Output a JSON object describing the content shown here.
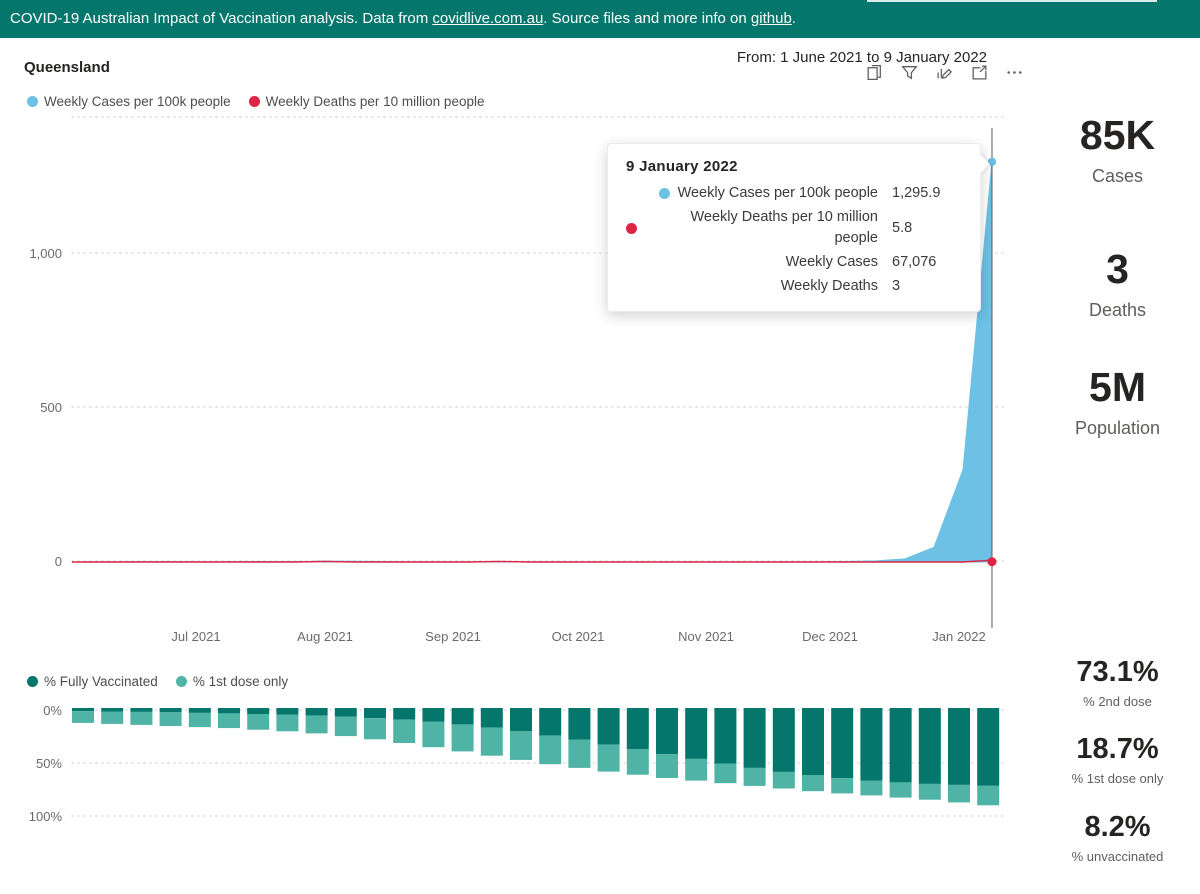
{
  "theme": {
    "teal": "#04766B",
    "light_teal": "#4FB3A5",
    "blue": "#6CC1E4",
    "red": "#DF2445",
    "text_dark": "#252423",
    "text_gray": "#605E5C",
    "grid": "#CFCECD"
  },
  "banner": {
    "text_before_link1": "COVID-19 Australian Impact of Vaccination analysis. Data from ",
    "link1": "covidlive.com.au",
    "text_between": ". Source files and more info on ",
    "link2": "github",
    "text_after": "."
  },
  "header": {
    "title": "Queensland",
    "date_range": "From: 1 June 2021 to 9 January 2022",
    "toolbar_icons": [
      "copy-visual",
      "filter",
      "personalize-visual",
      "focus-mode",
      "more-options"
    ]
  },
  "legend_top": {
    "items": [
      {
        "label": "Weekly Cases per 100k people",
        "color": "#6CC1E4"
      },
      {
        "label": "Weekly Deaths per 10 million people",
        "color": "#DF2445"
      }
    ]
  },
  "legend_bottom": {
    "items": [
      {
        "label": "% Fully Vaccinated",
        "color": "#04766B"
      },
      {
        "label": "% 1st dose only",
        "color": "#4FB3A5"
      }
    ]
  },
  "tooltip": {
    "title": "9 January 2022",
    "rows": [
      {
        "dot": "#6CC1E4",
        "label": "Weekly Cases per 100k people",
        "value": "1,295.9"
      },
      {
        "dot": "#DF2445",
        "label": "Weekly Deaths per 10 million people",
        "value": "5.8"
      },
      {
        "dot": null,
        "label": "Weekly Cases",
        "value": "67,076"
      },
      {
        "dot": null,
        "label": "Weekly Deaths",
        "value": "3"
      }
    ]
  },
  "kpis_top": [
    {
      "value": "85K",
      "label": "Cases"
    },
    {
      "value": "3",
      "label": "Deaths"
    },
    {
      "value": "5M",
      "label": "Population"
    }
  ],
  "kpis_bottom": [
    {
      "value": "73.1%",
      "label": "% 2nd dose"
    },
    {
      "value": "18.7%",
      "label": "% 1st dose only"
    },
    {
      "value": "8.2%",
      "label": "% unvaccinated"
    }
  ],
  "chart_data": [
    {
      "type": "area",
      "title": "Weekly COVID cases and deaths, Queensland, 1 June 2021 to 9 January 2022",
      "x_dates": [
        "6 Jun",
        "13 Jun",
        "20 Jun",
        "27 Jun",
        "4 Jul",
        "11 Jul",
        "18 Jul",
        "25 Jul",
        "1 Aug",
        "8 Aug",
        "15 Aug",
        "22 Aug",
        "29 Aug",
        "5 Sep",
        "12 Sep",
        "19 Sep",
        "26 Sep",
        "3 Oct",
        "10 Oct",
        "17 Oct",
        "24 Oct",
        "31 Oct",
        "7 Nov",
        "14 Nov",
        "21 Nov",
        "28 Nov",
        "5 Dec",
        "12 Dec",
        "19 Dec",
        "26 Dec",
        "2 Jan",
        "9 Jan"
      ],
      "series": [
        {
          "name": "Weekly Cases per 100k people",
          "color": "#6CC1E4",
          "values": [
            0.8,
            0.9,
            1.4,
            1.2,
            1.0,
            1.3,
            1.6,
            1.3,
            2.8,
            2.2,
            1.5,
            1.0,
            0.9,
            0.8,
            0.7,
            0.6,
            0.5,
            0.4,
            0.3,
            0.3,
            0.2,
            0.2,
            0.3,
            0.4,
            0.5,
            0.8,
            1.5,
            3.5,
            10.2,
            47.7,
            298.5,
            1295.9
          ]
        },
        {
          "name": "Weekly Deaths per 10 million people",
          "color": "#DF2445",
          "values": [
            0,
            0,
            0,
            0,
            0,
            0,
            0,
            0,
            1.9,
            0,
            0,
            0,
            0,
            0,
            1.9,
            0,
            0,
            0,
            0,
            0,
            0,
            0,
            0,
            0,
            0,
            0,
            0,
            0,
            0,
            0,
            0,
            5.8
          ]
        }
      ],
      "yticks": [
        "0",
        "500",
        "1,000"
      ],
      "ylim": [
        0,
        1440
      ],
      "xticks": [
        "Jul 2021",
        "Aug 2021",
        "Sep 2021",
        "Oct 2021",
        "Nov 2021",
        "Dec 2021",
        "Jan 2022"
      ],
      "grid": "dotted horizontal",
      "legend_position": "top",
      "highlighted_point": {
        "date": "9 January 2022",
        "cases_per_100k": 1295.9,
        "deaths_per_10m": 5.8,
        "weekly_cases": 67076,
        "weekly_deaths": 3
      }
    },
    {
      "type": "bar",
      "subtype": "stacked-inverted-hanging-from-top",
      "title": "Weekly vaccination coverage, Queensland",
      "x_dates": [
        "6 Jun",
        "13 Jun",
        "20 Jun",
        "27 Jun",
        "4 Jul",
        "11 Jul",
        "18 Jul",
        "25 Jul",
        "1 Aug",
        "8 Aug",
        "15 Aug",
        "22 Aug",
        "29 Aug",
        "5 Sep",
        "12 Sep",
        "19 Sep",
        "26 Sep",
        "3 Oct",
        "10 Oct",
        "17 Oct",
        "24 Oct",
        "31 Oct",
        "7 Nov",
        "14 Nov",
        "21 Nov",
        "28 Nov",
        "5 Dec",
        "12 Dec",
        "19 Dec",
        "26 Dec",
        "2 Jan",
        "9 Jan"
      ],
      "series": [
        {
          "name": "% Fully Vaccinated",
          "color": "#04766B",
          "values": [
            3.0,
            3.3,
            3.7,
            4.1,
            4.6,
            5.1,
            5.7,
            6.4,
            7.2,
            8.2,
            9.5,
            11.0,
            13.0,
            15.5,
            18.5,
            22.0,
            26.0,
            30.0,
            34.5,
            39.0,
            43.5,
            48.0,
            52.5,
            56.5,
            60.3,
            63.5,
            66.2,
            68.4,
            70.2,
            71.6,
            72.5,
            73.1
          ]
        },
        {
          "name": "% 1st dose only",
          "color": "#4FB3A5",
          "values": [
            11.0,
            11.7,
            12.3,
            12.9,
            13.4,
            13.9,
            14.8,
            15.6,
            16.8,
            18.3,
            20.0,
            22.0,
            24.0,
            25.5,
            26.5,
            27.0,
            27.0,
            26.5,
            25.5,
            24.0,
            22.5,
            20.5,
            18.5,
            17.0,
            15.7,
            15.0,
            14.3,
            14.1,
            14.3,
            14.9,
            16.5,
            18.7
          ]
        }
      ],
      "yticks": [
        "0%",
        "50%",
        "100%"
      ],
      "ylim": [
        0,
        100
      ],
      "grid": "dotted horizontal",
      "legend_position": "top"
    }
  ]
}
